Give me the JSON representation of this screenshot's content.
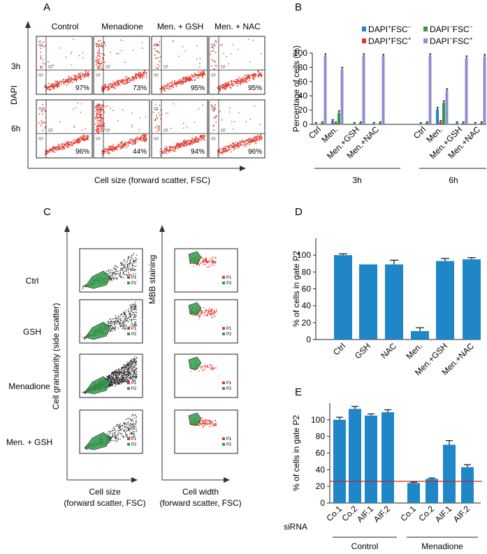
{
  "panel_labels": [
    "A",
    "B",
    "C",
    "D",
    "E"
  ],
  "panelA": {
    "columns": [
      "Control",
      "Menadione",
      "Men. + GSH",
      "Men. + NAC"
    ],
    "rows": [
      "3h",
      "6h"
    ],
    "percentages": [
      [
        "97%",
        "73%",
        "95%",
        "95%"
      ],
      [
        "96%",
        "44%",
        "94%",
        "96%"
      ]
    ],
    "y_label": "DAPI",
    "x_label": "Cell size (forward scatter, FSC)",
    "quadrant_labels": [
      "Q1",
      "Q2",
      "Q3"
    ]
  },
  "panelC": {
    "rows": [
      "Ctrl",
      "GSH",
      "Menadione",
      "Men. + GSH"
    ],
    "left_y_label": "Cell granularity (side scatter)",
    "left_x_label_1": "Cell size",
    "left_x_label_2": "(forward scatter, FSC)",
    "right_y_label": "MBB staining",
    "right_x_label_1": "Cell width",
    "right_x_label_2": "(forward scatter, FSC)",
    "gate_labels": [
      "P1",
      "P2"
    ]
  },
  "colors": {
    "blue": "#1f86c8",
    "red": "#e8332a",
    "green": "#2e9a48",
    "lavender": "#8f8fd0",
    "refline": "#cc2222",
    "dots_red": "#e33a2c",
    "dots_black": "#222222"
  },
  "chart_data": [
    {
      "id": "B",
      "type": "bar",
      "title": "",
      "ylabel": "Percentage of cells (%)",
      "ylim": [
        0,
        100
      ],
      "yticks": [
        0,
        20,
        40,
        60,
        80,
        100
      ],
      "group_labels": [
        "3h",
        "6h"
      ],
      "categories": [
        "Ctrl",
        "Men.",
        "Men.+GSH",
        "Men.+NAC",
        "Ctrl",
        "Men.",
        "Men.+GSH",
        "Men.+NAC"
      ],
      "series": [
        {
          "name": "DAPI+FSC-",
          "values": [
            1,
            5,
            1,
            1,
            1,
            21,
            2,
            1
          ]
        },
        {
          "name": "DAPI+FSC+",
          "values": [
            0,
            2,
            0,
            0,
            0,
            4,
            0,
            0
          ]
        },
        {
          "name": "DAPI-FSC-",
          "values": [
            2,
            16,
            2,
            2,
            2,
            30,
            2,
            2
          ]
        },
        {
          "name": "DAPI-FSC+",
          "values": [
            96,
            77,
            96,
            95,
            96,
            47,
            93,
            95
          ]
        }
      ],
      "legend": [
        {
          "main": "DAPI",
          "sup1": "+",
          "mid": "FSC",
          "sup2": "−"
        },
        {
          "main": "DAPI",
          "sup1": "−",
          "mid": "FSC",
          "sup2": "−"
        },
        {
          "main": "DAPI",
          "sup1": "+",
          "mid": "FSC",
          "sup2": "+"
        },
        {
          "main": "DAPI",
          "sup1": "−",
          "mid": "FSC",
          "sup2": "+"
        }
      ],
      "legend_position": "top"
    },
    {
      "id": "D",
      "type": "bar",
      "title": "",
      "ylabel": "% of cells in gate P2",
      "ylim": [
        0,
        120
      ],
      "yticks": [
        0,
        20,
        40,
        60,
        80,
        100
      ],
      "categories": [
        "Ctrl",
        "GSH",
        "NAC",
        "Men.",
        "Men.+GSH",
        "Men.+NAC"
      ],
      "values": [
        100,
        89,
        89,
        10,
        93,
        95
      ]
    },
    {
      "id": "E",
      "type": "bar",
      "title": "",
      "ylabel": "% of cells in gate P2",
      "ylim": [
        0,
        120
      ],
      "yticks": [
        0,
        20,
        40,
        60,
        80,
        100
      ],
      "row_label": "siRNA",
      "group_labels": [
        "Control",
        "Menadione"
      ],
      "categories": [
        "Co.1",
        "Co.2",
        "AIF.1",
        "AIF.2",
        "Co.1",
        "Co.2",
        "AIF.1",
        "AIF.2"
      ],
      "values": [
        100,
        113,
        105,
        109,
        24,
        29,
        70,
        43
      ],
      "reference_line": 26
    }
  ]
}
